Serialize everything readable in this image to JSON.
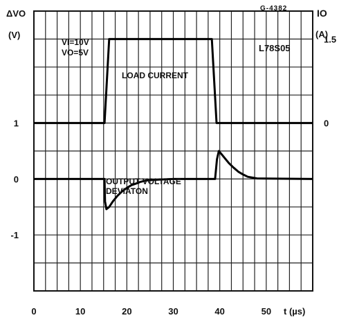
{
  "chart_data": {
    "type": "line",
    "figure_ref": "G-4382",
    "device": "L78S05",
    "conditions": {
      "vi": "VI=10V",
      "vo": "VO=5V"
    },
    "left_axis": {
      "symbol": "ΔVO",
      "unit": "(V)",
      "ylim": [
        -2,
        3
      ],
      "ticks": [
        "1",
        "0",
        "-1"
      ],
      "tick_values": [
        1,
        0,
        -1
      ]
    },
    "right_axis": {
      "symbol": "IO",
      "unit": "(A)",
      "ylim": [
        -3,
        2
      ],
      "ticks": [
        "1.5",
        "0"
      ],
      "tick_values": [
        1.5,
        0
      ]
    },
    "x_axis": {
      "label": "t (µs)",
      "xlim": [
        0,
        60
      ],
      "ticks": [
        "0",
        "10",
        "20",
        "30",
        "40",
        "50"
      ],
      "tick_values": [
        0,
        10,
        20,
        30,
        40,
        50
      ]
    },
    "grid": true,
    "annotations": {
      "load_current": "LOAD CURRENT",
      "output_line1": "OUTPUT VOLTAGE",
      "output_line2": "DEVIATON"
    },
    "series": [
      {
        "name": "LOAD CURRENT",
        "axis": "right",
        "x": [
          0,
          15.2,
          16.2,
          38.3,
          39.3,
          60
        ],
        "y": [
          0,
          0,
          1.5,
          1.5,
          0,
          0
        ]
      },
      {
        "name": "OUTPUT VOLTAGE DEVIATON",
        "axis": "left",
        "x": [
          0,
          15.2,
          15.3,
          15.6,
          16.2,
          17,
          18,
          19,
          20,
          21,
          22,
          23,
          24,
          25,
          27,
          30,
          39,
          39.4,
          39.8,
          40.4,
          41.2,
          42,
          43,
          44,
          45,
          46,
          48,
          60
        ],
        "y": [
          0,
          0,
          -0.4,
          -0.54,
          -0.5,
          -0.4,
          -0.3,
          -0.22,
          -0.16,
          -0.11,
          -0.08,
          -0.05,
          -0.03,
          -0.02,
          -0.01,
          0,
          0,
          0.35,
          0.5,
          0.44,
          0.36,
          0.28,
          0.2,
          0.13,
          0.08,
          0.04,
          0.01,
          0
        ]
      }
    ]
  }
}
